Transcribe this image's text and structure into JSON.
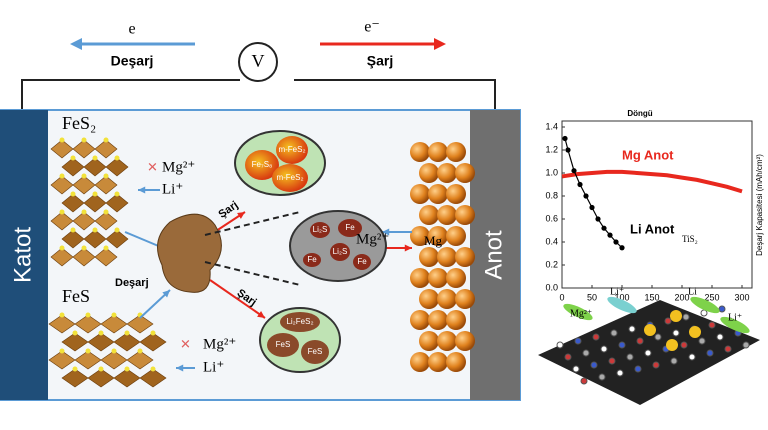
{
  "top": {
    "discharge_electron": "e",
    "discharge_label": "Deşarj",
    "voltmeter": "V",
    "charge_electron": "e⁻",
    "charge_label": "Şarj"
  },
  "diagram": {
    "cathode": "Katot",
    "anode": "Anot",
    "fes2": "FeS₂",
    "fes": "FeS",
    "mg_top": "Mg²⁺",
    "li_top": "Li⁺",
    "mg_bottom": "Mg²⁺",
    "li_bottom": "Li⁺",
    "discharge": "Deşarj",
    "charge_top": "Şarj",
    "charge_bottom": "Şarj",
    "mg_ion": "Mg²⁺",
    "mg_metal": "Mg",
    "particle_top": [
      "Fe₇S₈",
      "m-FeS₂",
      "m-FeS₂"
    ],
    "particle_mid": [
      "Li₂S",
      "Fe",
      "Li₂S",
      "Fe",
      "Fe"
    ],
    "particle_bottom": [
      "Li₂FeS₂",
      "FeS",
      "FeS"
    ]
  },
  "chart": {
    "type": "line",
    "title": "Döngü",
    "y_label": "Deşarj Kapasitesi (mAh/cm²)",
    "annotation": "TiS₂",
    "xlim": [
      0,
      310
    ],
    "xticks": [
      0,
      50,
      100,
      150,
      200,
      250,
      300
    ],
    "ylim": [
      0,
      1.4
    ],
    "yticks": [
      {
        "value": 0,
        "label": "0.0"
      },
      {
        "value": 0.2,
        "label": "0.2"
      },
      {
        "value": 0.4,
        "label": "0.4"
      },
      {
        "value": 0.6,
        "label": "0.6"
      },
      {
        "value": 0.8,
        "label": "0.8"
      },
      {
        "value": 1,
        "label": "1.0"
      },
      {
        "value": 1.2,
        "label": "1.2"
      },
      {
        "value": 1.4,
        "label": "1.4"
      }
    ],
    "series": [
      {
        "name": "Mg Anot",
        "color": "#e8281e",
        "x": [
          0,
          25,
          50,
          75,
          100,
          125,
          150,
          175,
          200,
          225,
          250,
          275,
          300
        ],
        "values": [
          0.97,
          0.99,
          1.0,
          1.01,
          1.01,
          1.0,
          0.99,
          0.98,
          0.96,
          0.94,
          0.91,
          0.88,
          0.84
        ]
      },
      {
        "name": "Li Anot",
        "color": "#000000",
        "x": [
          5,
          10,
          20,
          30,
          40,
          50,
          60,
          70,
          80,
          90,
          100
        ],
        "values": [
          1.3,
          1.2,
          1.02,
          0.9,
          0.8,
          0.7,
          0.6,
          0.52,
          0.46,
          0.4,
          0.35
        ]
      }
    ]
  },
  "illustration": {
    "labels": [
      "Mg²⁺",
      "Li⁺",
      "Li",
      "Li⁺"
    ]
  }
}
